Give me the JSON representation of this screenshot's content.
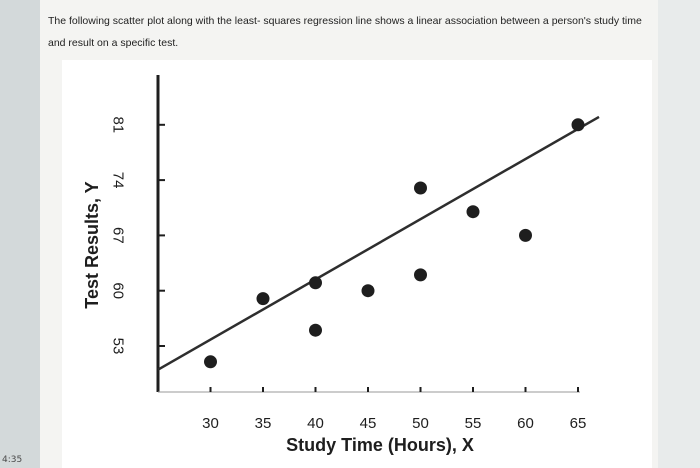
{
  "question": {
    "text": "The following scatter plot along with the least- squares regression line shows a linear association between a person's study time and result on a specific test."
  },
  "timestamp": "4:35",
  "chart_data": {
    "type": "scatter",
    "title": "",
    "xlabel": "Study Time (Hours), X",
    "ylabel": "Test Results, Y",
    "x_ticks": [
      30,
      35,
      40,
      45,
      50,
      55,
      60,
      65
    ],
    "y_ticks": [
      53,
      60,
      67,
      74,
      81
    ],
    "xlim": [
      25,
      67
    ],
    "ylim": [
      47,
      86
    ],
    "grid": false,
    "series": [
      {
        "points": [
          {
            "x": 30,
            "y": 51
          },
          {
            "x": 35,
            "y": 59
          },
          {
            "x": 40,
            "y": 61
          },
          {
            "x": 40,
            "y": 55
          },
          {
            "x": 45,
            "y": 60
          },
          {
            "x": 50,
            "y": 62
          },
          {
            "x": 50,
            "y": 73
          },
          {
            "x": 55,
            "y": 70
          },
          {
            "x": 60,
            "y": 67
          },
          {
            "x": 65,
            "y": 81
          }
        ]
      }
    ],
    "regression_line": {
      "x": [
        25,
        67
      ],
      "y": [
        50,
        82
      ]
    },
    "colors": {
      "points": "#1e1e1e",
      "line": "#2e2e2e",
      "axis": "#1e1e1e"
    }
  }
}
